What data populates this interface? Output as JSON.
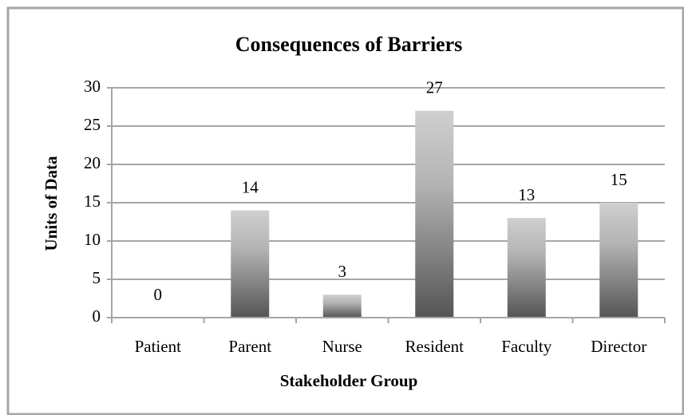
{
  "chart_data": {
    "type": "bar",
    "title": "Consequences of Barriers",
    "x_label": "Stakeholder Group",
    "y_label": "Units of Data",
    "categories": [
      "Patient",
      "Parent",
      "Nurse",
      "Resident",
      "Faculty",
      "Director"
    ],
    "values": [
      0,
      14,
      3,
      27,
      13,
      15
    ],
    "ylim": [
      0,
      30
    ],
    "yticks": [
      0,
      5,
      10,
      15,
      20,
      25,
      30
    ],
    "grid": true
  }
}
